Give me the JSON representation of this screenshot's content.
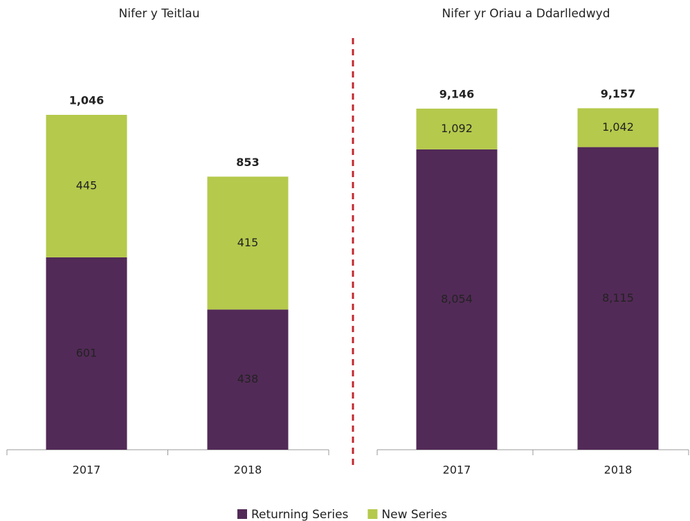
{
  "chart_data": [
    {
      "type": "stacked_bar",
      "title": "Nifer y Teitlau",
      "categories": [
        "2017",
        "2018"
      ],
      "series": [
        {
          "name": "Returning Series",
          "color": "#522a57",
          "values": [
            601,
            438
          ]
        },
        {
          "name": "New Series",
          "color": "#b5c94c",
          "values": [
            445,
            415
          ]
        }
      ],
      "totals": [
        1046,
        853
      ],
      "total_labels": [
        "1,046",
        "853"
      ],
      "ylim": [
        0,
        1100
      ],
      "legend": "bottom"
    },
    {
      "type": "stacked_bar",
      "title": "Nifer yr Oriau a Ddarlledwyd",
      "categories": [
        "2017",
        "2018"
      ],
      "series": [
        {
          "name": "Returning Series",
          "color": "#522a57",
          "values": [
            8054,
            8115
          ],
          "value_labels": [
            "8,054",
            "8,115"
          ]
        },
        {
          "name": "New Series",
          "color": "#b5c94c",
          "values": [
            1092,
            1042
          ],
          "value_labels": [
            "1,092",
            "1,042"
          ]
        }
      ],
      "totals": [
        9146,
        9157
      ],
      "total_labels": [
        "9,146",
        "9,157"
      ],
      "ylim": [
        0,
        10000
      ]
    }
  ]
}
